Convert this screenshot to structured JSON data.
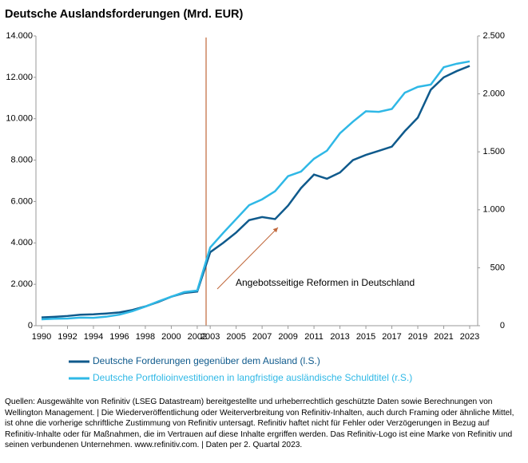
{
  "chart_data": {
    "type": "line",
    "title": "Deutsche Auslandsforderungen (Mrd. EUR)",
    "annotation": "Angebotsseitige Reformen in Deutschland",
    "x": [
      1990,
      1991,
      1992,
      1993,
      1994,
      1995,
      1996,
      1997,
      1998,
      1999,
      2000,
      2001,
      2002,
      2003,
      2004,
      2005,
      2006,
      2007,
      2008,
      2009,
      2010,
      2011,
      2012,
      2013,
      2014,
      2015,
      2016,
      2017,
      2018,
      2019,
      2020,
      2021,
      2022,
      2023
    ],
    "xlim": [
      1990,
      2023
    ],
    "xticks": [
      1990,
      1992,
      1994,
      1996,
      1998,
      2000,
      2002,
      2003,
      2005,
      2007,
      2009,
      2011,
      2013,
      2015,
      2017,
      2019,
      2021,
      2023
    ],
    "ylim": [
      0,
      14000
    ],
    "yticks": [
      0,
      {
        "value": 2000,
        "label": "2.000"
      },
      {
        "value": 4000,
        "label": "4.000"
      },
      {
        "value": 6000,
        "label": "6.000"
      },
      {
        "value": 8000,
        "label": "8.000"
      },
      {
        "value": 10000,
        "label": "10.000"
      },
      {
        "value": 12000,
        "label": "12.000"
      },
      {
        "value": 14000,
        "label": "14.000"
      }
    ],
    "y2lim": [
      0,
      2500
    ],
    "y2ticks": [
      0,
      500,
      {
        "value": 1000,
        "label": "1.000"
      },
      {
        "value": 1500,
        "label": "1.500"
      },
      {
        "value": 2000,
        "label": "2.000"
      },
      {
        "value": 2500,
        "label": "2.500"
      }
    ],
    "series": [
      {
        "name": "Deutsche Forderungen gegenüber dem Ausland (l.S.)",
        "color": "#0f5a8c",
        "values": [
          400,
          430,
          470,
          530,
          550,
          590,
          640,
          760,
          930,
          1150,
          1400,
          1580,
          1650,
          3550,
          4000,
          4500,
          5100,
          5250,
          5150,
          5800,
          6650,
          7300,
          7100,
          7400,
          8000,
          8250,
          8450,
          8650,
          9400,
          10050,
          11400,
          12000,
          12300,
          12550
        ]
      },
      {
        "name": "Deutsche Portfolioinvestitionen in langfristige ausländische Schuldtitel (r.S.)",
        "color": "#2fb8e6",
        "axis": "y2",
        "values": [
          55,
          60,
          62,
          70,
          68,
          78,
          95,
          125,
          165,
          210,
          250,
          290,
          303,
          675,
          800,
          920,
          1040,
          1090,
          1160,
          1290,
          1330,
          1440,
          1510,
          1660,
          1760,
          1850,
          1845,
          1870,
          2010,
          2060,
          2080,
          2230,
          2260,
          2280
        ]
      }
    ]
  },
  "footnote": "Quellen: Ausgewählte von Refinitiv (LSEG Datastream) bereitgestellte und urheberrechtlich geschützte Daten sowie Berechnungen von Wellington Management. | Die Wiederveröffentlichung oder Weiterverbreitung von Refinitiv-Inhalten, auch durch Framing oder ähnliche Mittel, ist ohne die vorherige schriftliche Zustimmung von Refinitiv untersagt. Refinitiv haftet nicht für Fehler oder Verzögerungen in Bezug auf Refinitiv-Inhalte oder für Maßnahmen, die im Vertrauen auf diese Inhalte ergriffen werden. Das Refinitiv-Logo ist eine Marke von Refinitiv und seinen verbundenen Unternehmen. www.refinitiv.com. | Daten per 2. Quartal 2023."
}
